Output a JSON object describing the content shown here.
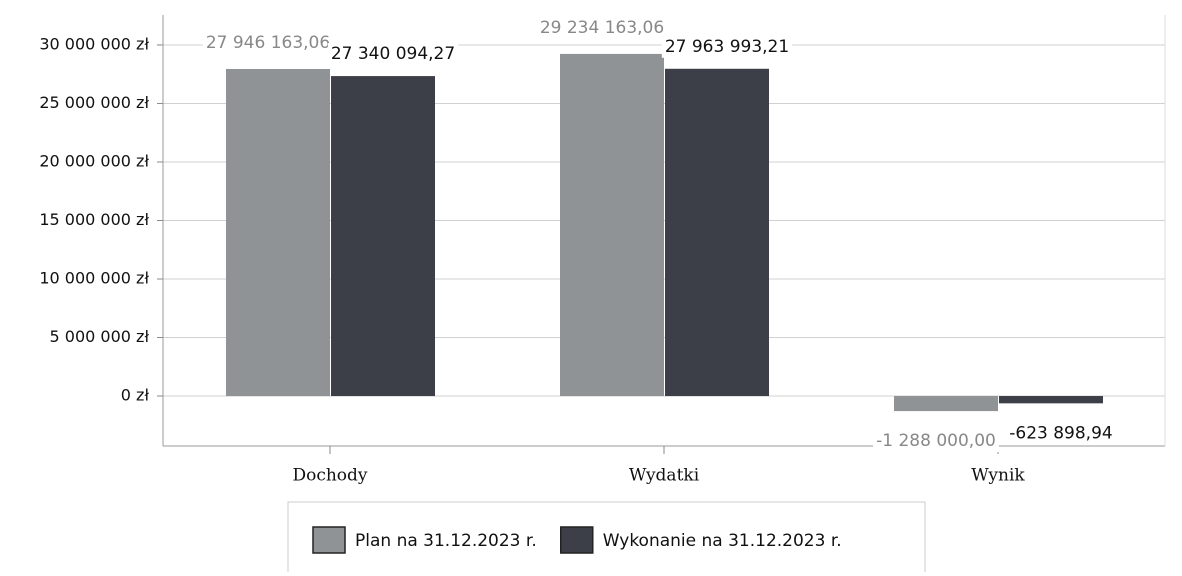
{
  "chart_data": {
    "type": "bar",
    "categories": [
      "Dochody",
      "Wydatki",
      "Wynik"
    ],
    "series": [
      {
        "name": "Plan na 31.12.2023 r.",
        "color": "#909396",
        "values": [
          27946163.06,
          29234163.06,
          -1288000.0
        ],
        "value_labels": [
          "27 946 163,06",
          "29 234 163,06",
          "-1 288 000,00"
        ]
      },
      {
        "name": "Wykonanie na 31.12.2023 r.",
        "color": "#3c3e48",
        "values": [
          27340094.27,
          27963993.21,
          -623898.94
        ],
        "value_labels": [
          "27 340 094,27",
          "27 963 993,21",
          "-623 898,94"
        ]
      }
    ],
    "ylim": [
      -4270000,
      32560000
    ],
    "yticks": [
      {
        "value": 0,
        "label": "0 zł"
      },
      {
        "value": 5000000,
        "label": "5 000 000 zł"
      },
      {
        "value": 10000000,
        "label": "10 000 000 zł"
      },
      {
        "value": 15000000,
        "label": "15 000 000 zł"
      },
      {
        "value": 20000000,
        "label": "20 000 000 zł"
      },
      {
        "value": 25000000,
        "label": "25 000 000 zł"
      },
      {
        "value": 30000000,
        "label": "30 000 000 zł"
      }
    ],
    "grid": true
  }
}
